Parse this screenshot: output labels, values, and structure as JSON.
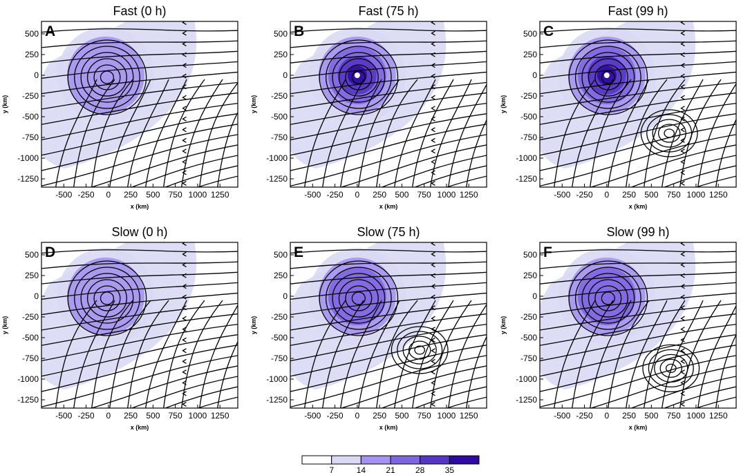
{
  "colors": {
    "levels": [
      "#ffffff",
      "#d9d9f5",
      "#a493ef",
      "#7e66e0",
      "#5537c4",
      "#2f0a9e"
    ],
    "streamline": "#000000"
  },
  "panels": [
    {
      "letter": "A",
      "title": "Fast (0 h)",
      "row": 0,
      "col": 0
    },
    {
      "letter": "B",
      "title": "Fast (75 h)",
      "row": 0,
      "col": 1
    },
    {
      "letter": "C",
      "title": "Fast (99 h)",
      "row": 0,
      "col": 2
    },
    {
      "letter": "D",
      "title": "Slow (0 h)",
      "row": 1,
      "col": 0
    },
    {
      "letter": "E",
      "title": "Slow (75 h)",
      "row": 1,
      "col": 1
    },
    {
      "letter": "F",
      "title": "Slow (99 h)",
      "row": 1,
      "col": 2
    }
  ],
  "colorbar": {
    "ticks": [
      "7",
      "14",
      "21",
      "28",
      "35"
    ],
    "boundaries": [
      0,
      7,
      14,
      21,
      28,
      35,
      42
    ]
  },
  "chart_data": {
    "type": "contour",
    "xlabel": "x (km)",
    "ylabel": "y (km)",
    "xlim": [
      -750,
      1450
    ],
    "ylim": [
      -1350,
      650
    ],
    "xticks": [
      -500,
      -250,
      0,
      250,
      500,
      750,
      1000,
      1250
    ],
    "yticks": [
      500,
      250,
      0,
      -250,
      -500,
      -750,
      -1000,
      -1250
    ],
    "xtick_labels": [
      "-500",
      "-250",
      "0",
      "250",
      "500",
      "750",
      "1000",
      "1250"
    ],
    "ytick_labels": [
      "500",
      "250",
      "0",
      "-250",
      "-500",
      "-750",
      "-1000",
      "-1250"
    ],
    "shading_levels": [
      7,
      14,
      21,
      28,
      35
    ],
    "panels": [
      {
        "panel": "A",
        "vortex_center": [
          -30,
          0
        ],
        "max_level": 14,
        "secondary_vortex": null
      },
      {
        "panel": "B",
        "vortex_center": [
          0,
          0
        ],
        "max_level": 35,
        "secondary_vortex": null
      },
      {
        "panel": "C",
        "vortex_center": [
          0,
          0
        ],
        "max_level": 42,
        "secondary_vortex": [
          700,
          -700
        ]
      },
      {
        "panel": "D",
        "vortex_center": [
          -30,
          0
        ],
        "max_level": 14,
        "secondary_vortex": null
      },
      {
        "panel": "E",
        "vortex_center": [
          0,
          0
        ],
        "max_level": 21,
        "secondary_vortex": [
          700,
          -650
        ]
      },
      {
        "panel": "F",
        "vortex_center": [
          0,
          0
        ],
        "max_level": 21,
        "secondary_vortex": [
          720,
          -870
        ]
      }
    ]
  }
}
